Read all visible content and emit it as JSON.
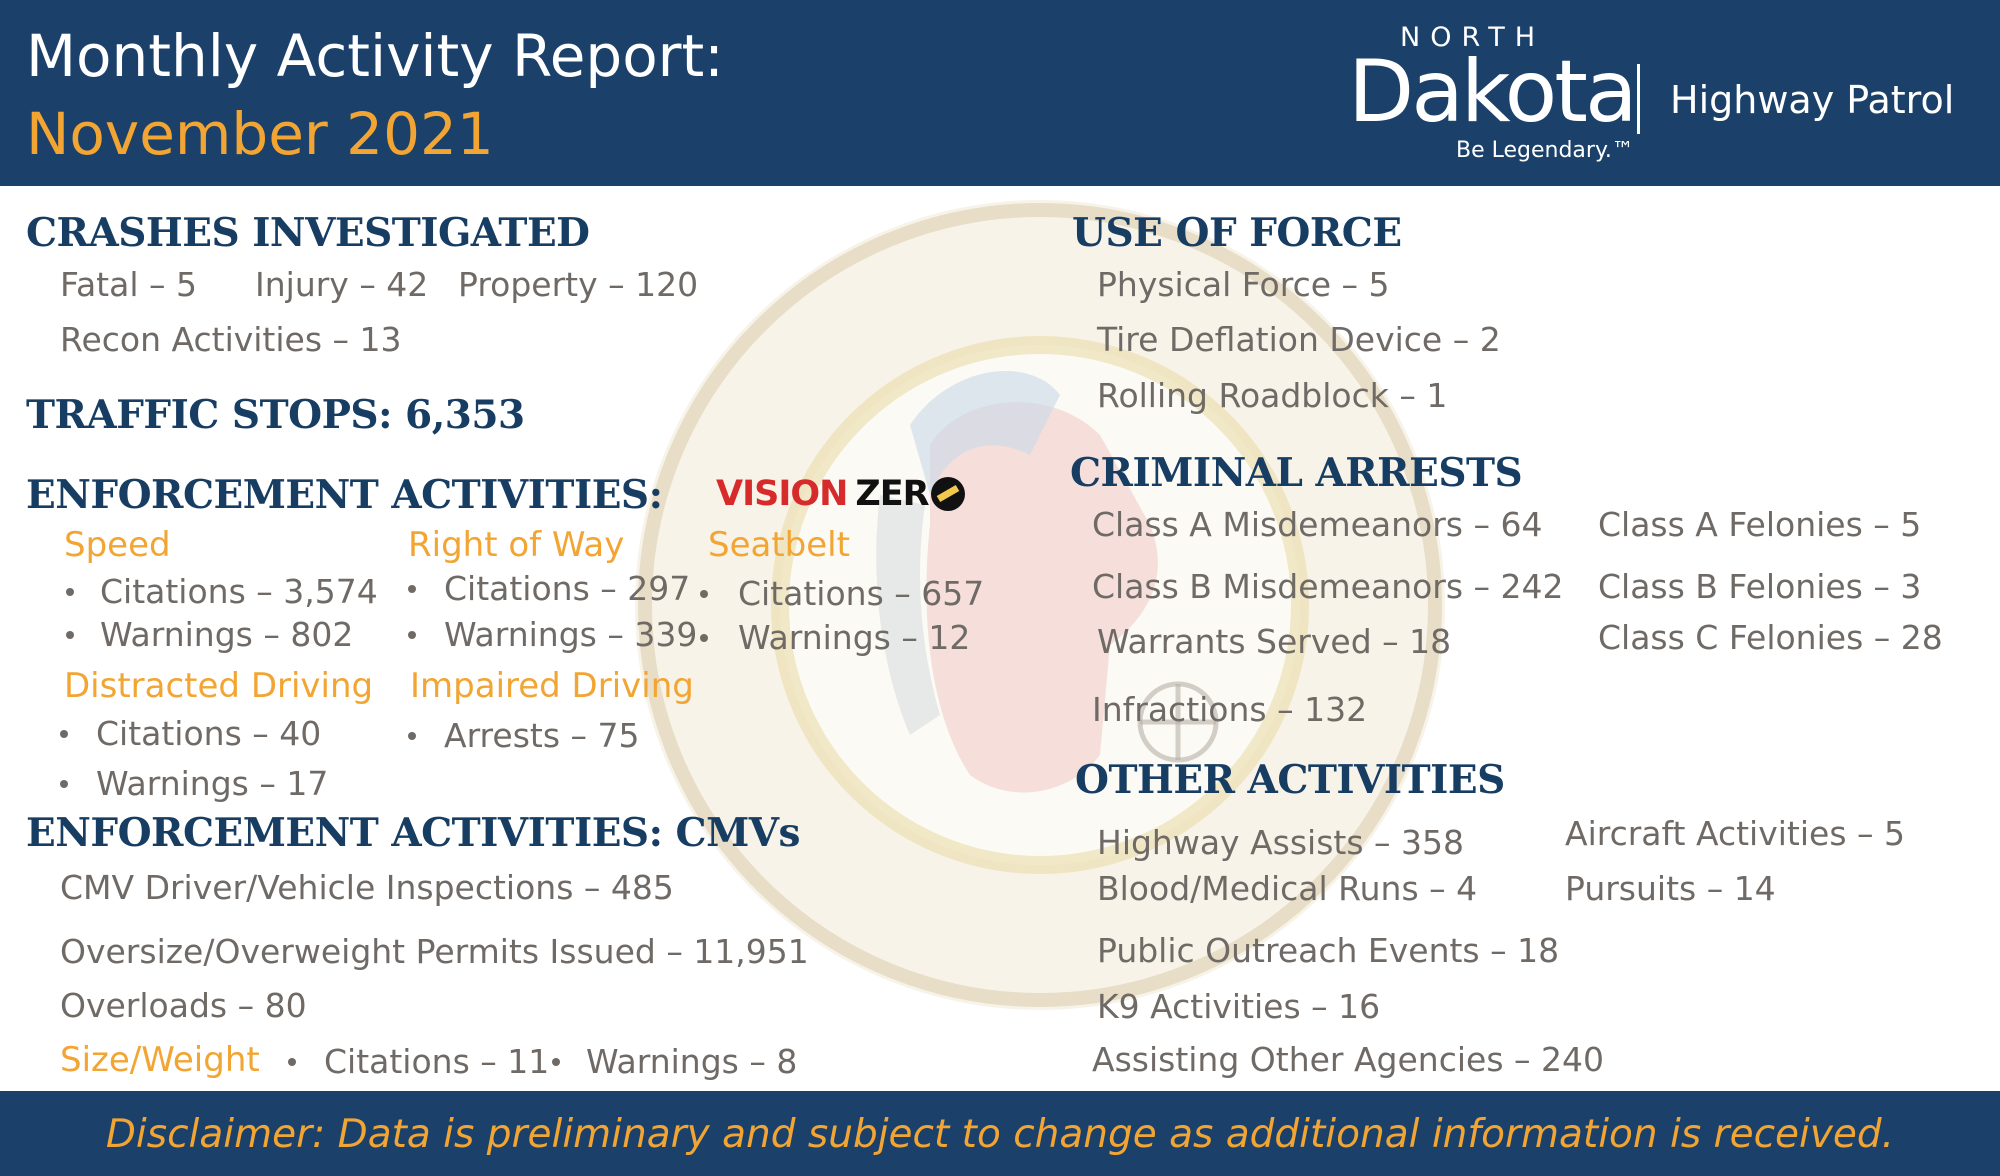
{
  "header": {
    "title_line1": "Monthly Activity Report:",
    "title_line2": "November 2021",
    "logo_north": "NORTH",
    "logo_dakota": "Dakota",
    "logo_tagline": "Be Legendary.™",
    "logo_division": "Highway Patrol",
    "accent_color": "#f2a533",
    "banner_color": "#1b416b"
  },
  "crashes": {
    "heading": "CRASHES INVESTIGATED",
    "fatal": "Fatal – 5",
    "injury": "Injury – 42",
    "property": "Property – 120",
    "recon": "Recon Activities – 13"
  },
  "traffic_stops": {
    "heading": "TRAFFIC STOPS: 6,353"
  },
  "enforcement": {
    "heading": "ENFORCEMENT ACTIVITIES:",
    "vision_zero": {
      "part1": "VISION",
      "part2": "ZER"
    },
    "speed": {
      "label": "Speed",
      "citations": "Citations – 3,574",
      "warnings": "Warnings – 802"
    },
    "right_of_way": {
      "label": "Right of Way",
      "citations": "Citations – 297",
      "warnings": "Warnings – 339"
    },
    "seatbelt": {
      "label": "Seatbelt",
      "citations": "Citations – 657",
      "warnings": "Warnings – 12"
    },
    "distracted": {
      "label": "Distracted Driving",
      "citations": "Citations – 40",
      "warnings": "Warnings – 17"
    },
    "impaired": {
      "label": "Impaired Driving",
      "arrests": "Arrests – 75"
    }
  },
  "cmv": {
    "heading": "ENFORCEMENT ACTIVITIES: CMVs",
    "inspections": "CMV Driver/Vehicle Inspections – 485",
    "permits": "Oversize/Overweight Permits Issued – 11,951",
    "overloads": "Overloads – 80",
    "size_weight": {
      "label": "Size/Weight",
      "citations": "Citations – 11",
      "warnings": "Warnings – 8"
    }
  },
  "use_of_force": {
    "heading": "USE OF FORCE",
    "physical": "Physical Force – 5",
    "tire_deflation": "Tire Deflation Device – 2",
    "rolling_roadblock": "Rolling Roadblock – 1"
  },
  "criminal_arrests": {
    "heading": "CRIMINAL ARRESTS",
    "class_a_misd": "Class A Misdemeanors – 64",
    "class_b_misd": "Class B Misdemeanors – 242",
    "warrants": "Warrants Served – 18",
    "infractions": "Infractions – 132",
    "class_a_fel": "Class A Felonies – 5",
    "class_b_fel": "Class B Felonies – 3",
    "class_c_fel": "Class C Felonies – 28"
  },
  "other": {
    "heading": "OTHER ACTIVITIES",
    "highway_assists": "Highway Assists – 358",
    "blood_medical": "Blood/Medical Runs – 4",
    "outreach": "Public Outreach Events –  18",
    "k9": "K9 Activities – 16",
    "assisting_agencies": "Assisting Other Agencies – 240",
    "aircraft": "Aircraft Activities – 5",
    "pursuits": "Pursuits – 14"
  },
  "footer": {
    "disclaimer": "Disclaimer: Data is preliminary and subject to change as additional information is received."
  }
}
